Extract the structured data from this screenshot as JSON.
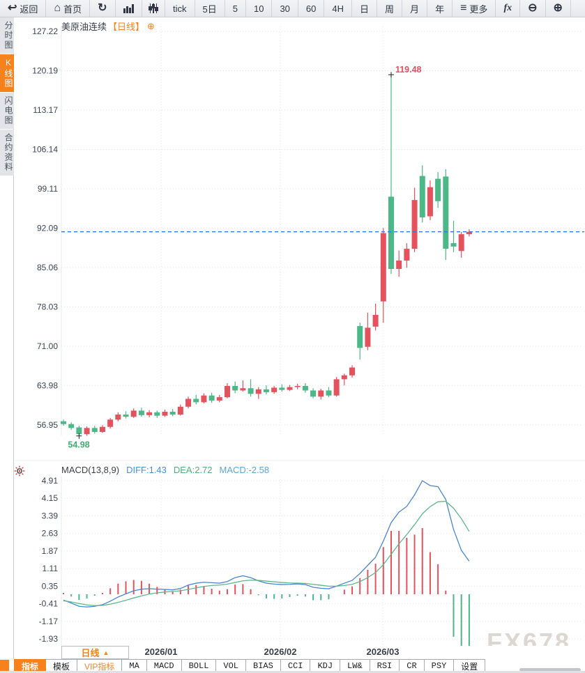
{
  "toolbar": {
    "items": [
      {
        "name": "back-button",
        "icon": "back",
        "label": "返回"
      },
      {
        "name": "home-button",
        "icon": "home",
        "label": "首页"
      },
      {
        "name": "refresh-button",
        "icon": "refresh",
        "label": ""
      },
      {
        "name": "bar-chart-type-button",
        "icon": "bar-chart",
        "label": ""
      },
      {
        "name": "candle-chart-type-button",
        "icon": "candle-sliders",
        "label": ""
      },
      {
        "name": "period-tick-button",
        "icon": "",
        "label": "tick"
      },
      {
        "name": "period-5day-button",
        "icon": "",
        "label": "5日"
      },
      {
        "name": "period-5min-button",
        "icon": "",
        "label": "5"
      },
      {
        "name": "period-10min-button",
        "icon": "",
        "label": "10"
      },
      {
        "name": "period-30min-button",
        "icon": "",
        "label": "30"
      },
      {
        "name": "period-60min-button",
        "icon": "",
        "label": "60"
      },
      {
        "name": "period-4h-button",
        "icon": "",
        "label": "4H"
      },
      {
        "name": "period-day-button",
        "icon": "",
        "label": "日"
      },
      {
        "name": "period-week-button",
        "icon": "",
        "label": "周"
      },
      {
        "name": "period-month-button",
        "icon": "",
        "label": "月"
      },
      {
        "name": "period-year-button",
        "icon": "",
        "label": "年"
      },
      {
        "name": "more-menu-button",
        "icon": "menu",
        "label": "更多"
      },
      {
        "name": "fx-indicator-button",
        "icon": "fx",
        "label": ""
      },
      {
        "name": "zoom-out-button",
        "icon": "zoom-out",
        "label": ""
      },
      {
        "name": "zoom-in-button",
        "icon": "zoom-in",
        "label": ""
      }
    ]
  },
  "sidebar": {
    "tabs": [
      {
        "label": "分时图",
        "active": false
      },
      {
        "label": "K线图",
        "active": true
      },
      {
        "label": "闪电图",
        "active": false
      },
      {
        "label": "合约资料",
        "active": false
      }
    ]
  },
  "chart": {
    "title": "美原油连续",
    "period_tag": "【日线】",
    "add_icon": "⊕",
    "y_axis_labels": [
      "127.22",
      "120.19",
      "113.17",
      "106.14",
      "99.11",
      "92.09",
      "85.06",
      "78.03",
      "71.00",
      "63.98",
      "56.95"
    ]
  },
  "macd_header": {
    "title": "MACD(13,8,9)",
    "diff_label": "DIFF:1.43",
    "dea_label": "DEA:2.72",
    "macd_label": "MACD:-2.58"
  },
  "bottom": {
    "period_button": "日线",
    "period_button_arrow": "▲",
    "x_labels": [
      "2026/01",
      "2026/02",
      "2026/03"
    ],
    "tabs": [
      {
        "label": "指标",
        "style": "active cjk"
      },
      {
        "label": "模板",
        "style": "cjk"
      },
      {
        "label": "VIP指标",
        "style": "vip cjk"
      },
      {
        "label": "MA",
        "style": ""
      },
      {
        "label": "MACD",
        "style": ""
      },
      {
        "label": "BOLL",
        "style": ""
      },
      {
        "label": "VOL",
        "style": ""
      },
      {
        "label": "BIAS",
        "style": ""
      },
      {
        "label": "CCI",
        "style": ""
      },
      {
        "label": "KDJ",
        "style": ""
      },
      {
        "label": "LW&",
        "style": ""
      },
      {
        "label": "RSI",
        "style": ""
      },
      {
        "label": "CR",
        "style": ""
      },
      {
        "label": "PSY",
        "style": ""
      },
      {
        "label": "设置",
        "style": "cjk"
      }
    ]
  },
  "watermark": "FX678",
  "colors": {
    "up": "#e4525e",
    "down": "#4cb787",
    "accent": "#f7821b",
    "diff_line": "#4a86d1",
    "dea_line": "#5eb78a",
    "price_line": "#2e7ce0",
    "high_text": "#e05260",
    "low_text": "#3eae74"
  },
  "chart_data": {
    "type": "candlestick",
    "symbol": "美原油连续",
    "period": "日线",
    "y_ticks": [
      127.22,
      120.19,
      113.17,
      106.14,
      99.11,
      92.09,
      85.06,
      78.03,
      71.0,
      63.98,
      56.95
    ],
    "x_tick_labels": [
      "2026/01",
      "2026/02",
      "2026/03"
    ],
    "high_label": "119.48",
    "low_label": "54.98",
    "last_price": 91.43,
    "open": [
      57.6,
      57.1,
      56.5,
      55.3,
      56.4,
      55.7,
      56.6,
      57.9,
      58.8,
      58.4,
      59.5,
      58.7,
      59.2,
      58.6,
      59.3,
      58.8,
      60.2,
      61.6,
      61.0,
      62.2,
      61.3,
      61.9,
      63.9,
      63.1,
      63.5,
      62.5,
      63.3,
      62.8,
      63.6,
      63.2,
      63.7,
      63.9,
      63.1,
      62.0,
      63.1,
      62.2,
      65.1,
      65.8,
      74.6,
      70.9,
      74.5,
      79.0,
      97.7,
      84.8,
      86.3,
      88.4,
      101.4,
      94.2,
      100.9,
      101.3,
      89.4,
      88.0,
      91.0
    ],
    "high": [
      57.9,
      57.4,
      56.8,
      56.7,
      56.8,
      56.9,
      58.2,
      59.2,
      59.4,
      59.9,
      60.0,
      59.6,
      59.5,
      59.7,
      59.8,
      60.6,
      62.0,
      62.3,
      62.6,
      62.7,
      62.3,
      64.4,
      64.7,
      64.9,
      65.1,
      63.7,
      64.0,
      63.9,
      64.2,
      64.1,
      64.3,
      64.4,
      63.5,
      63.4,
      63.7,
      65.5,
      66.1,
      67.6,
      75.2,
      77.0,
      78.6,
      92.1,
      119.48,
      88.1,
      89.4,
      99.3,
      103.3,
      100.6,
      102.1,
      102.6,
      93.4,
      91.4,
      91.9
    ],
    "low": [
      56.8,
      56.1,
      54.98,
      55.0,
      55.4,
      55.5,
      56.3,
      57.6,
      58.1,
      58.2,
      58.4,
      58.3,
      58.2,
      58.4,
      58.5,
      58.6,
      59.9,
      60.6,
      60.8,
      60.9,
      61.0,
      61.7,
      62.6,
      62.9,
      62.0,
      61.6,
      62.4,
      62.5,
      62.9,
      63.0,
      63.3,
      62.7,
      61.7,
      61.5,
      61.9,
      62.0,
      64.0,
      65.4,
      68.6,
      70.3,
      73.8,
      75.2,
      83.9,
      83.4,
      85.0,
      87.8,
      93.1,
      93.5,
      95.7,
      86.4,
      87.8,
      86.8,
      90.6
    ],
    "close": [
      57.1,
      56.4,
      55.3,
      56.4,
      55.7,
      56.6,
      57.9,
      58.8,
      58.4,
      59.5,
      58.7,
      59.2,
      58.6,
      59.3,
      58.8,
      60.2,
      61.6,
      61.0,
      62.2,
      61.3,
      61.9,
      63.9,
      63.1,
      63.5,
      62.5,
      63.3,
      62.8,
      63.6,
      63.2,
      63.7,
      63.9,
      63.1,
      62.0,
      63.1,
      62.2,
      65.1,
      65.8,
      67.2,
      70.7,
      74.3,
      76.6,
      91.2,
      84.8,
      86.3,
      88.4,
      97.1,
      94.0,
      99.4,
      96.9,
      88.4,
      88.8,
      91.0,
      91.43
    ],
    "macd": {
      "params": "13,8,9",
      "diff_last": 1.43,
      "dea_last": 2.72,
      "macd_last": -2.58,
      "y_ticks": [
        4.91,
        4.15,
        3.39,
        2.63,
        1.87,
        1.11,
        0.35,
        -0.41,
        -1.17,
        -1.93
      ],
      "diff": [
        -0.25,
        -0.38,
        -0.52,
        -0.55,
        -0.52,
        -0.45,
        -0.3,
        -0.12,
        0.02,
        0.15,
        0.22,
        0.24,
        0.22,
        0.21,
        0.19,
        0.25,
        0.4,
        0.48,
        0.52,
        0.5,
        0.48,
        0.55,
        0.72,
        0.8,
        0.72,
        0.58,
        0.48,
        0.44,
        0.42,
        0.43,
        0.45,
        0.42,
        0.3,
        0.26,
        0.24,
        0.35,
        0.48,
        0.6,
        0.9,
        1.25,
        1.6,
        2.3,
        3.1,
        3.55,
        3.8,
        4.3,
        4.91,
        4.7,
        4.65,
        4.1,
        2.8,
        1.9,
        1.43
      ],
      "dea": [
        -0.28,
        -0.33,
        -0.4,
        -0.46,
        -0.49,
        -0.48,
        -0.43,
        -0.35,
        -0.26,
        -0.16,
        -0.07,
        0.01,
        0.06,
        0.1,
        0.12,
        0.15,
        0.21,
        0.28,
        0.34,
        0.38,
        0.4,
        0.44,
        0.51,
        0.58,
        0.61,
        0.6,
        0.57,
        0.54,
        0.51,
        0.49,
        0.48,
        0.47,
        0.43,
        0.39,
        0.35,
        0.35,
        0.38,
        0.43,
        0.55,
        0.72,
        0.94,
        1.28,
        1.73,
        2.18,
        2.58,
        3.01,
        3.48,
        3.79,
        4.0,
        4.02,
        3.72,
        3.27,
        2.72
      ],
      "hist": [
        0.06,
        -0.1,
        -0.24,
        -0.18,
        -0.06,
        0.06,
        0.26,
        0.46,
        0.56,
        0.62,
        0.58,
        0.46,
        0.32,
        0.22,
        0.14,
        0.2,
        0.38,
        0.4,
        0.36,
        0.24,
        0.16,
        0.22,
        0.42,
        0.44,
        0.22,
        -0.04,
        -0.18,
        -0.2,
        -0.18,
        -0.12,
        -0.06,
        -0.1,
        -0.26,
        -0.26,
        -0.22,
        0.0,
        0.2,
        0.34,
        0.7,
        1.06,
        1.32,
        2.04,
        2.74,
        2.74,
        2.44,
        2.58,
        2.86,
        1.82,
        1.3,
        0.16,
        -1.84,
        -2.74,
        -2.58
      ]
    }
  }
}
